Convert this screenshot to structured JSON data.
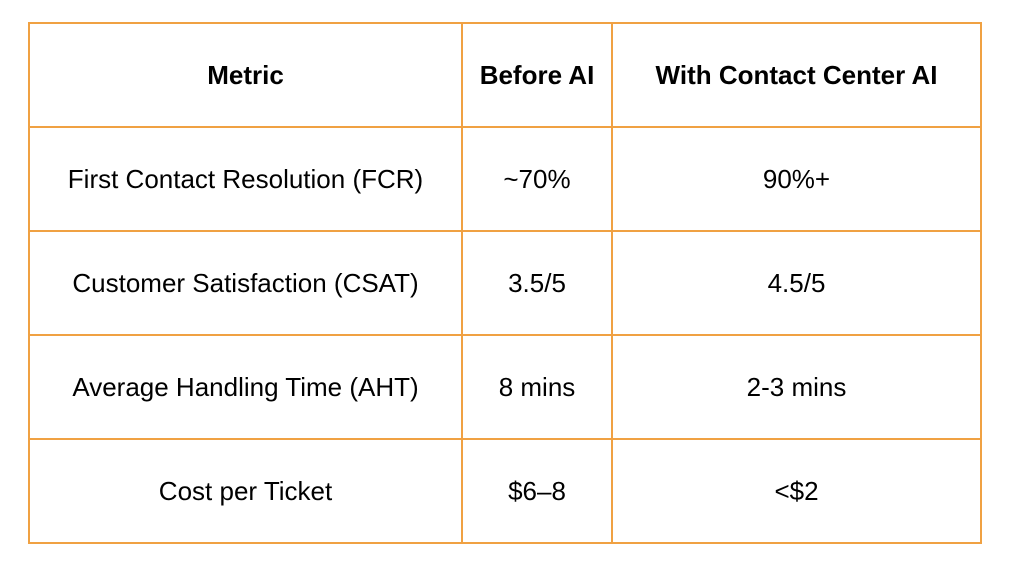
{
  "colors": {
    "table_border": "#F0A143",
    "text": "#000000",
    "background": "#FFFFFF"
  },
  "table": {
    "columns": [
      "Metric",
      "Before AI",
      "With Contact Center AI"
    ],
    "rows": [
      {
        "metric": "First Contact Resolution (FCR)",
        "before": "~70%",
        "with_ai": "90%+"
      },
      {
        "metric": "Customer Satisfaction (CSAT)",
        "before": "3.5/5",
        "with_ai": "4.5/5"
      },
      {
        "metric": "Average Handling Time (AHT)",
        "before": "8 mins",
        "with_ai": "2-3 mins"
      },
      {
        "metric": "Cost per Ticket",
        "before": "$6–8",
        "with_ai": "<$2"
      }
    ]
  }
}
